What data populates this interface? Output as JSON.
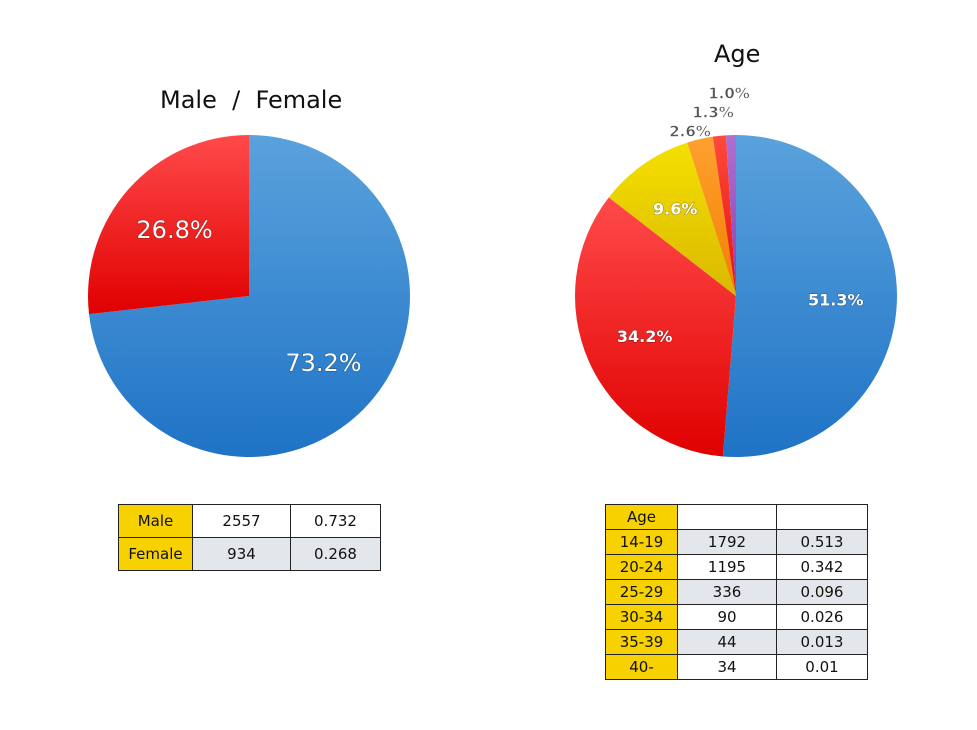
{
  "chart_data": [
    {
      "type": "pie",
      "title": "Male  /  Female",
      "slices": [
        {
          "name": "Male",
          "value": 73.2,
          "label": "73.2%",
          "color": "#1f73c6",
          "light": "#5aa2dc"
        },
        {
          "name": "Female",
          "value": 26.8,
          "label": "26.8%",
          "color": "#e00000",
          "light": "#ff4a4a"
        }
      ]
    },
    {
      "type": "pie",
      "title": "Age",
      "slices": [
        {
          "name": "14-19",
          "value": 51.3,
          "label": "51.3%",
          "color": "#1f73c6",
          "light": "#5aa2dc"
        },
        {
          "name": "20-24",
          "value": 34.2,
          "label": "34.2%",
          "color": "#e00000",
          "light": "#ff4a4a"
        },
        {
          "name": "25-29",
          "value": 9.6,
          "label": "9.6%",
          "color": "#d9b800",
          "light": "#f5e000"
        },
        {
          "name": "30-34",
          "value": 2.6,
          "label": "2.6%",
          "color": "#f08000",
          "light": "#ffa030"
        },
        {
          "name": "35-39",
          "value": 1.3,
          "label": "1.3%",
          "color": "#e01010",
          "light": "#ff4a3a"
        },
        {
          "name": "40-",
          "value": 1.0,
          "label": "1.0%",
          "color": "#8a3fb0",
          "light": "#b070d0"
        }
      ]
    }
  ],
  "gender_table": {
    "rows": [
      {
        "label": "Male",
        "count": "2557",
        "ratio": "0.732"
      },
      {
        "label": "Female",
        "count": "934",
        "ratio": "0.268"
      }
    ]
  },
  "age_table": {
    "header": {
      "label": "Age",
      "count": "",
      "ratio": ""
    },
    "rows": [
      {
        "label": "14-19",
        "count": "1792",
        "ratio": "0.513"
      },
      {
        "label": "20-24",
        "count": "1195",
        "ratio": "0.342"
      },
      {
        "label": "25-29",
        "count": "336",
        "ratio": "0.096"
      },
      {
        "label": "30-34",
        "count": "90",
        "ratio": "0.026"
      },
      {
        "label": "35-39",
        "count": "44",
        "ratio": "0.013"
      },
      {
        "label": "40-",
        "count": "34",
        "ratio": "0.01"
      }
    ]
  }
}
